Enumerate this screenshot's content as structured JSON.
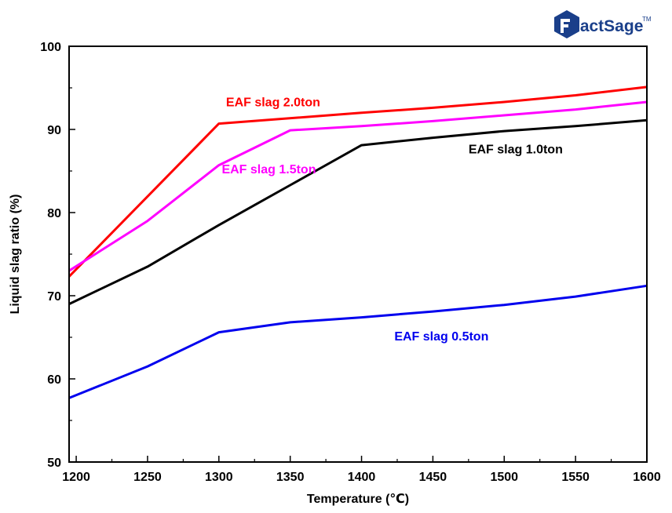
{
  "chart_data": {
    "type": "line",
    "xlabel": "Temperature (℃)",
    "ylabel": "Liquid slag ratio (%)",
    "xlim": [
      1195,
      1600
    ],
    "ylim": [
      50,
      100
    ],
    "xticks": [
      1200,
      1250,
      1300,
      1350,
      1400,
      1450,
      1500,
      1550,
      1600
    ],
    "yticks": [
      50,
      60,
      70,
      80,
      90,
      100
    ],
    "grid": false,
    "legend": "inline labels",
    "series": [
      {
        "name": "EAF slag 2.0ton",
        "color": "#ff0000",
        "x": [
          1195,
          1300,
          1400,
          1450,
          1500,
          1550,
          1600
        ],
        "y": [
          72.3,
          90.7,
          92.0,
          92.6,
          93.3,
          94.1,
          95.1
        ],
        "label_pos": [
          1305,
          92.8
        ]
      },
      {
        "name": "EAF slag 1.5ton",
        "color": "#ff00ff",
        "x": [
          1195,
          1250,
          1300,
          1350,
          1400,
          1450,
          1500,
          1550,
          1600
        ],
        "y": [
          73.0,
          79.0,
          85.7,
          89.9,
          90.4,
          91.0,
          91.7,
          92.4,
          93.3
        ],
        "label_pos": [
          1302,
          84.7
        ]
      },
      {
        "name": "EAF slag 1.0ton",
        "color": "#000000",
        "x": [
          1195,
          1250,
          1300,
          1350,
          1400,
          1450,
          1500,
          1550,
          1600
        ],
        "y": [
          69.0,
          73.5,
          78.5,
          83.3,
          88.1,
          89.0,
          89.8,
          90.4,
          91.1
        ],
        "label_pos": [
          1475,
          87.1
        ]
      },
      {
        "name": "EAF slag 0.5ton",
        "color": "#0000ee",
        "x": [
          1195,
          1250,
          1300,
          1350,
          1400,
          1450,
          1500,
          1550,
          1600
        ],
        "y": [
          57.7,
          61.5,
          65.6,
          66.8,
          67.4,
          68.1,
          68.9,
          69.9,
          71.2
        ],
        "label_pos": [
          1423,
          64.6
        ]
      }
    ]
  },
  "logo": {
    "text": "FactSage",
    "tm": "TM"
  }
}
